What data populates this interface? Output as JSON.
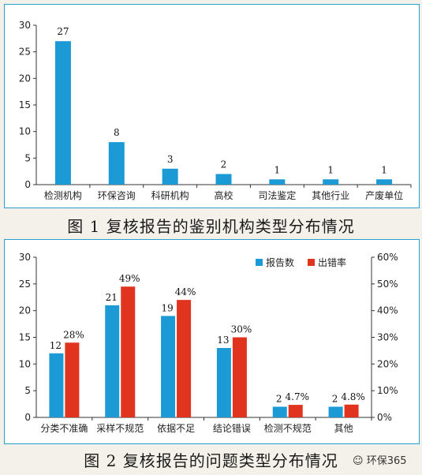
{
  "colors": {
    "blue": "#1c9ad6",
    "red": "#e0341e",
    "border": "#2b9fd0"
  },
  "chart_data": [
    {
      "type": "bar",
      "title": "图 1  复核报告的鉴别机构类型分布情况",
      "categories": [
        "检测机构",
        "环保咨询",
        "科研机构",
        "高校",
        "司法鉴定",
        "其他行业",
        "产废单位"
      ],
      "series": [
        {
          "values": [
            27,
            8,
            3,
            2,
            1,
            1,
            1
          ]
        }
      ],
      "ylim": [
        0,
        30
      ],
      "yticks": [
        "0",
        "5",
        "10",
        "15",
        "20",
        "25",
        "30"
      ],
      "grid": false
    },
    {
      "type": "bar",
      "title": "图 2  复核报告的问题类型分布情况",
      "categories": [
        "分类不准确",
        "采样不规范",
        "依据不足",
        "结论错误",
        "检测不规范",
        "其他"
      ],
      "series": [
        {
          "name": "报告数",
          "values": [
            12,
            21,
            19,
            13,
            2,
            2
          ]
        },
        {
          "name": "出错率",
          "values": [
            28,
            49,
            44,
            30,
            4.7,
            4.8
          ],
          "labels": [
            "28%",
            "49%",
            "44%",
            "30%",
            "4.7%",
            "4.8%"
          ]
        }
      ],
      "ylim": [
        0,
        30
      ],
      "y2lim": [
        0,
        60
      ],
      "yticks": [
        "0",
        "5",
        "10",
        "15",
        "20",
        "25",
        "30"
      ],
      "y2ticks": [
        "0%",
        "10%",
        "20%",
        "30%",
        "40%",
        "50%",
        "60%"
      ],
      "legend": "top-right",
      "grid": false
    }
  ],
  "watermark": "环保365"
}
